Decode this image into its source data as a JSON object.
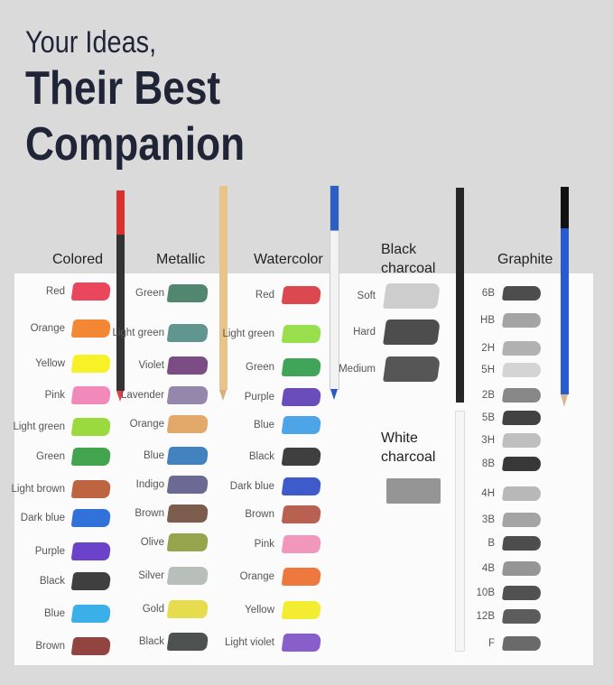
{
  "headline": {
    "line1": "Your Ideas,",
    "line2": "Their Best",
    "line3": "Companion"
  },
  "colored": {
    "title": "Colored",
    "items": [
      {
        "label": "Red",
        "color": "#e8334a"
      },
      {
        "label": "Orange",
        "color": "#f27a1e"
      },
      {
        "label": "Yellow",
        "color": "#f6ef10"
      },
      {
        "label": "Pink",
        "color": "#f07cb2"
      },
      {
        "label": "Light green",
        "color": "#8fd62a"
      },
      {
        "label": "Green",
        "color": "#2f9a3c"
      },
      {
        "label": "Light brown",
        "color": "#b8532c"
      },
      {
        "label": "Dark blue",
        "color": "#1a62d6"
      },
      {
        "label": "Purple",
        "color": "#5a2fc4"
      },
      {
        "label": "Black",
        "color": "#2a2a2a"
      },
      {
        "label": "Blue",
        "color": "#26a6e4"
      },
      {
        "label": "Brown",
        "color": "#86302c"
      }
    ]
  },
  "metallic": {
    "title": "Metallic",
    "items": [
      {
        "label": "Green",
        "color": "#3e7a5e"
      },
      {
        "label": "Light green",
        "color": "#4f8a84"
      },
      {
        "label": "Violet",
        "color": "#6e3a78"
      },
      {
        "label": "Lavender",
        "color": "#8a7aa2"
      },
      {
        "label": "Orange",
        "color": "#e0a05a"
      },
      {
        "label": "Blue",
        "color": "#2e76b8"
      },
      {
        "label": "Indigo",
        "color": "#5c5a8a"
      },
      {
        "label": "Brown",
        "color": "#6e4a3a"
      },
      {
        "label": "Olive",
        "color": "#8a9a3a"
      },
      {
        "label": "Silver",
        "color": "#b0b8b4"
      },
      {
        "label": "Gold",
        "color": "#e4d83a"
      },
      {
        "label": "Black",
        "color": "#3a3e3c"
      }
    ]
  },
  "watercolor": {
    "title": "Watercolor",
    "items": [
      {
        "label": "Red",
        "color": "#d8343c"
      },
      {
        "label": "Light green",
        "color": "#8edc3a"
      },
      {
        "label": "Green",
        "color": "#2e9a46"
      },
      {
        "label": "Purple",
        "color": "#5a38b4"
      },
      {
        "label": "Blue",
        "color": "#3a9ae4"
      },
      {
        "label": "Black",
        "color": "#2a2a2a"
      },
      {
        "label": "Dark blue",
        "color": "#2a48c4"
      },
      {
        "label": "Brown",
        "color": "#b0503e"
      },
      {
        "label": "Pink",
        "color": "#f08cb4"
      },
      {
        "label": "Orange",
        "color": "#ec6a2a"
      },
      {
        "label": "Yellow",
        "color": "#f2ea1a"
      },
      {
        "label": "Light violet",
        "color": "#7a4cc4"
      }
    ]
  },
  "black_charcoal": {
    "title": "Black charcoal",
    "items": [
      {
        "label": "Soft",
        "color": "#c8c8c8"
      },
      {
        "label": "Hard",
        "color": "#3a3a3a"
      },
      {
        "label": "Medium",
        "color": "#444444"
      }
    ]
  },
  "white_charcoal": {
    "title": "White charcoal",
    "color": "#8a8a8a"
  },
  "graphite": {
    "title": "Graphite",
    "items": [
      {
        "label": "6B",
        "color": "#3a3a3a"
      },
      {
        "label": "HB",
        "color": "#9a9a9a"
      },
      {
        "label": "2H",
        "color": "#a8a8a8"
      },
      {
        "label": "5H",
        "color": "#cfcfcf"
      },
      {
        "label": "2B",
        "color": "#7a7a7a"
      },
      {
        "label": "5B",
        "color": "#2e2e2e"
      },
      {
        "label": "3H",
        "color": "#b8b8b8"
      },
      {
        "label": "8B",
        "color": "#222222"
      },
      {
        "label": "4H",
        "color": "#b0b0b0"
      },
      {
        "label": "3B",
        "color": "#9a9a9a"
      },
      {
        "label": "B",
        "color": "#3a3a3a"
      },
      {
        "label": "4B",
        "color": "#8a8a8a"
      },
      {
        "label": "10B",
        "color": "#3e3e3e"
      },
      {
        "label": "12B",
        "color": "#4a4a4a"
      },
      {
        "label": "F",
        "color": "#5a5a5a"
      }
    ]
  }
}
